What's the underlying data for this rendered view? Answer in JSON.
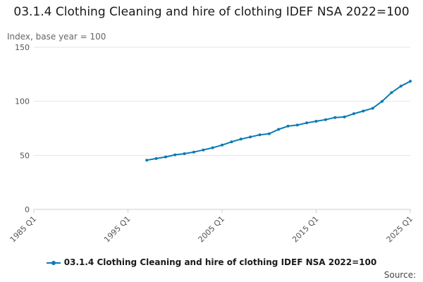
{
  "chart_data": {
    "type": "line",
    "title": "03.1.4 Clothing Cleaning and hire of clothing IDEF NSA 2022=100",
    "ylabel": "Index, base year = 100",
    "xlabel": "",
    "x_ticks": [
      "1985 Q1",
      "1995 Q1",
      "2005 Q1",
      "2015 Q1",
      "2025 Q1"
    ],
    "y_ticks": [
      0,
      50,
      100,
      150
    ],
    "ylim": [
      0,
      150
    ],
    "xlim": [
      1985,
      2025
    ],
    "grid": true,
    "legend_position": "bottom",
    "series": [
      {
        "name": "03.1.4 Clothing Cleaning and hire of clothing IDEF NSA 2022=100",
        "color": "#0b7ab5",
        "x": [
          1997.0,
          1998.0,
          1999.0,
          2000.0,
          2001.0,
          2002.0,
          2003.0,
          2004.0,
          2005.0,
          2006.0,
          2007.0,
          2008.0,
          2009.0,
          2010.0,
          2011.0,
          2012.0,
          2013.0,
          2014.0,
          2015.0,
          2016.0,
          2017.0,
          2018.0,
          2019.0,
          2020.0,
          2021.0,
          2022.0,
          2023.0,
          2024.0,
          2025.0
        ],
        "values": [
          45.5,
          47.0,
          48.5,
          50.5,
          51.5,
          53.0,
          55.0,
          57.0,
          59.5,
          62.5,
          65.0,
          67.0,
          69.0,
          70.0,
          74.0,
          77.0,
          78.0,
          80.0,
          81.5,
          83.0,
          85.0,
          85.5,
          88.5,
          91.0,
          93.5,
          100.0,
          108.0,
          114.0,
          118.5
        ]
      }
    ]
  },
  "footer": {
    "source_label": "Source:"
  }
}
